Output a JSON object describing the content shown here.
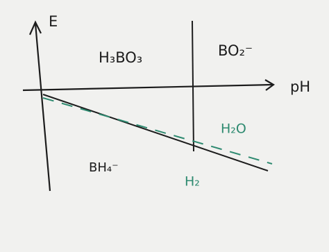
{
  "axes": {
    "y_label": "E",
    "x_label": "pH"
  },
  "regions": {
    "acid": "H₃BO₃",
    "base": "BO₂⁻",
    "reduced": "BH₄⁻"
  },
  "water": {
    "stable": "H₂O",
    "reduced": "H₂"
  }
}
